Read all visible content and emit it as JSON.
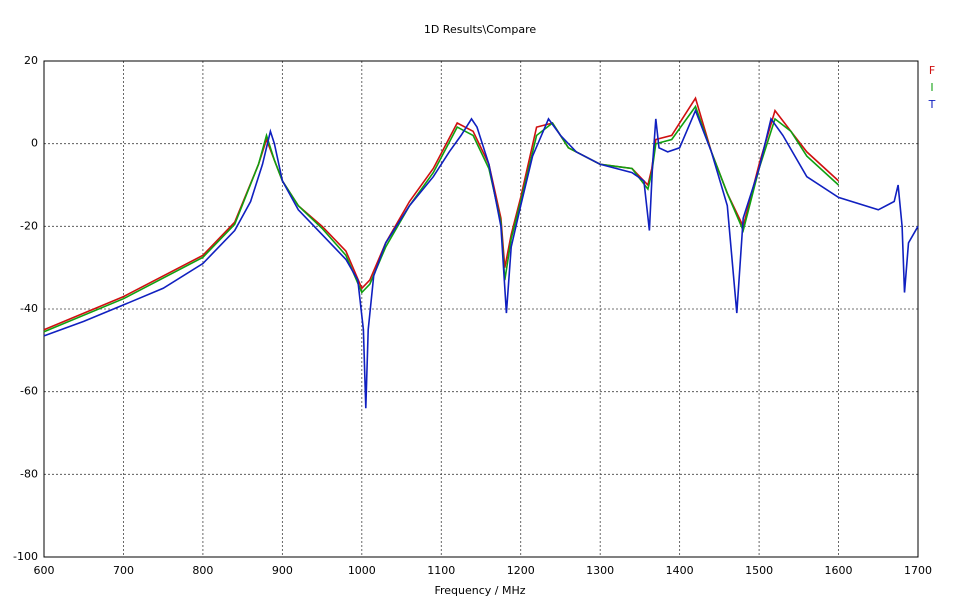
{
  "chart_data": {
    "type": "line",
    "title": "1D Results\\Compare",
    "x_label": "Frequency / MHz",
    "xlim": [
      600,
      1700
    ],
    "xticks": [
      600,
      700,
      800,
      900,
      1000,
      1100,
      1200,
      1300,
      1400,
      1500,
      1600,
      1700
    ],
    "ylim": [
      -100,
      20
    ],
    "yticks": [
      20,
      0,
      -20,
      -40,
      -60,
      -80,
      -100
    ],
    "grid": true,
    "legend": "top-right",
    "series": [
      {
        "name": "F",
        "color": "#d01010",
        "x": [
          600,
          700,
          800,
          840,
          870,
          880,
          890,
          900,
          920,
          950,
          980,
          1000,
          1010,
          1030,
          1060,
          1090,
          1120,
          1140,
          1160,
          1175,
          1180,
          1188,
          1200,
          1220,
          1240,
          1260,
          1300,
          1340,
          1360,
          1365,
          1370,
          1390,
          1420,
          1440,
          1460,
          1480,
          1500,
          1520,
          1540,
          1560,
          1600
        ],
        "values": [
          -45,
          -37,
          -27,
          -19,
          -5,
          1,
          -4,
          -9,
          -15,
          -20,
          -26,
          -35,
          -33,
          -24,
          -14,
          -6,
          5,
          3,
          -5,
          -18,
          -30,
          -22,
          -13,
          4,
          5,
          -1,
          -5,
          -6,
          -10,
          -6,
          1,
          2,
          11,
          -2,
          -12,
          -20,
          -5,
          8,
          3,
          -2,
          -9
        ]
      },
      {
        "name": "I",
        "color": "#10a010",
        "x": [
          600,
          700,
          800,
          840,
          870,
          880,
          890,
          900,
          920,
          950,
          980,
          1000,
          1010,
          1030,
          1060,
          1090,
          1120,
          1140,
          1160,
          1175,
          1180,
          1188,
          1200,
          1220,
          1240,
          1260,
          1300,
          1340,
          1360,
          1365,
          1370,
          1390,
          1420,
          1440,
          1460,
          1480,
          1500,
          1520,
          1540,
          1560,
          1600
        ],
        "values": [
          -45.5,
          -37.5,
          -27.5,
          -19.5,
          -5,
          2,
          -4,
          -9,
          -15,
          -20.5,
          -27,
          -36,
          -34,
          -25,
          -15,
          -7,
          4,
          2,
          -6,
          -19,
          -33,
          -23,
          -14,
          2,
          5,
          -1,
          -5,
          -6,
          -11,
          -7,
          0,
          1,
          9,
          -2,
          -12,
          -21,
          -6,
          6,
          3,
          -3,
          -10
        ]
      },
      {
        "name": "T",
        "color": "#1020c0",
        "x": [
          600,
          650,
          700,
          750,
          800,
          840,
          860,
          875,
          885,
          890,
          900,
          920,
          950,
          980,
          995,
          1002,
          1005,
          1008,
          1015,
          1030,
          1060,
          1090,
          1110,
          1125,
          1138,
          1145,
          1160,
          1175,
          1182,
          1188,
          1200,
          1215,
          1235,
          1250,
          1270,
          1300,
          1340,
          1355,
          1362,
          1366,
          1370,
          1374,
          1385,
          1400,
          1420,
          1440,
          1460,
          1472,
          1480,
          1500,
          1515,
          1530,
          1560,
          1600,
          1650,
          1670,
          1675,
          1680,
          1683,
          1688,
          1700
        ],
        "values": [
          -46.5,
          -43,
          -39,
          -35,
          -29,
          -21,
          -14,
          -5,
          3,
          0,
          -9,
          -16,
          -22,
          -28,
          -33,
          -45,
          -64,
          -45,
          -32,
          -24,
          -15,
          -8,
          -2,
          2,
          6,
          4,
          -5,
          -20,
          -41,
          -25,
          -15,
          -3,
          6,
          2,
          -2,
          -5,
          -7,
          -9,
          -21,
          -5,
          6,
          -1,
          -2,
          -1,
          8,
          -2,
          -15,
          -41,
          -18,
          -6,
          6,
          2,
          -8,
          -13,
          -16,
          -14,
          -10,
          -20,
          -36,
          -24,
          -20
        ]
      }
    ]
  }
}
